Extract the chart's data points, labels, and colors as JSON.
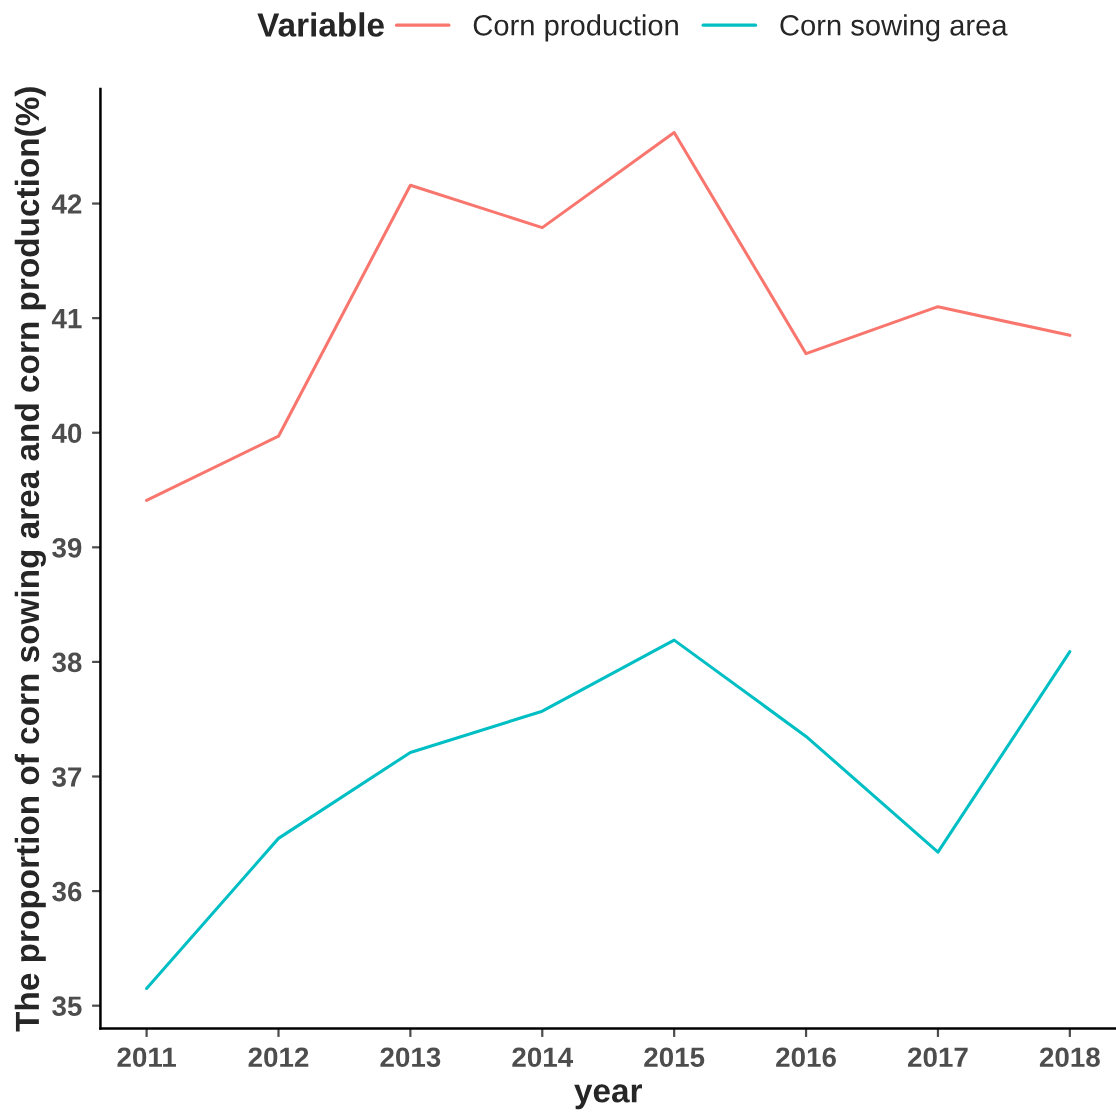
{
  "chart_data": {
    "type": "line",
    "xlabel": "year",
    "ylabel": "The proportion of corn sowing area and corn production(%)",
    "legend_title": "Variable",
    "x": [
      2011,
      2012,
      2013,
      2014,
      2015,
      2016,
      2017,
      2018
    ],
    "series": [
      {
        "name": "Corn production",
        "color": "#f8766d",
        "values": [
          39.41,
          39.97,
          42.16,
          41.79,
          42.62,
          40.69,
          41.1,
          40.85
        ]
      },
      {
        "name": "Corn sowing area",
        "color": "#00bfc4",
        "values": [
          35.15,
          36.46,
          37.21,
          37.57,
          38.19,
          37.35,
          36.34,
          38.09
        ]
      }
    ],
    "xlim": [
      2010.65,
      2018.35
    ],
    "xticks": [
      2011,
      2012,
      2013,
      2014,
      2015,
      2016,
      2017,
      2018
    ],
    "ylim": [
      34.8,
      43.0
    ],
    "yticks": [
      35,
      36,
      37,
      38,
      39,
      40,
      41,
      42
    ],
    "grid": false,
    "legend": "top",
    "marker": "none",
    "line_style": "solid"
  }
}
